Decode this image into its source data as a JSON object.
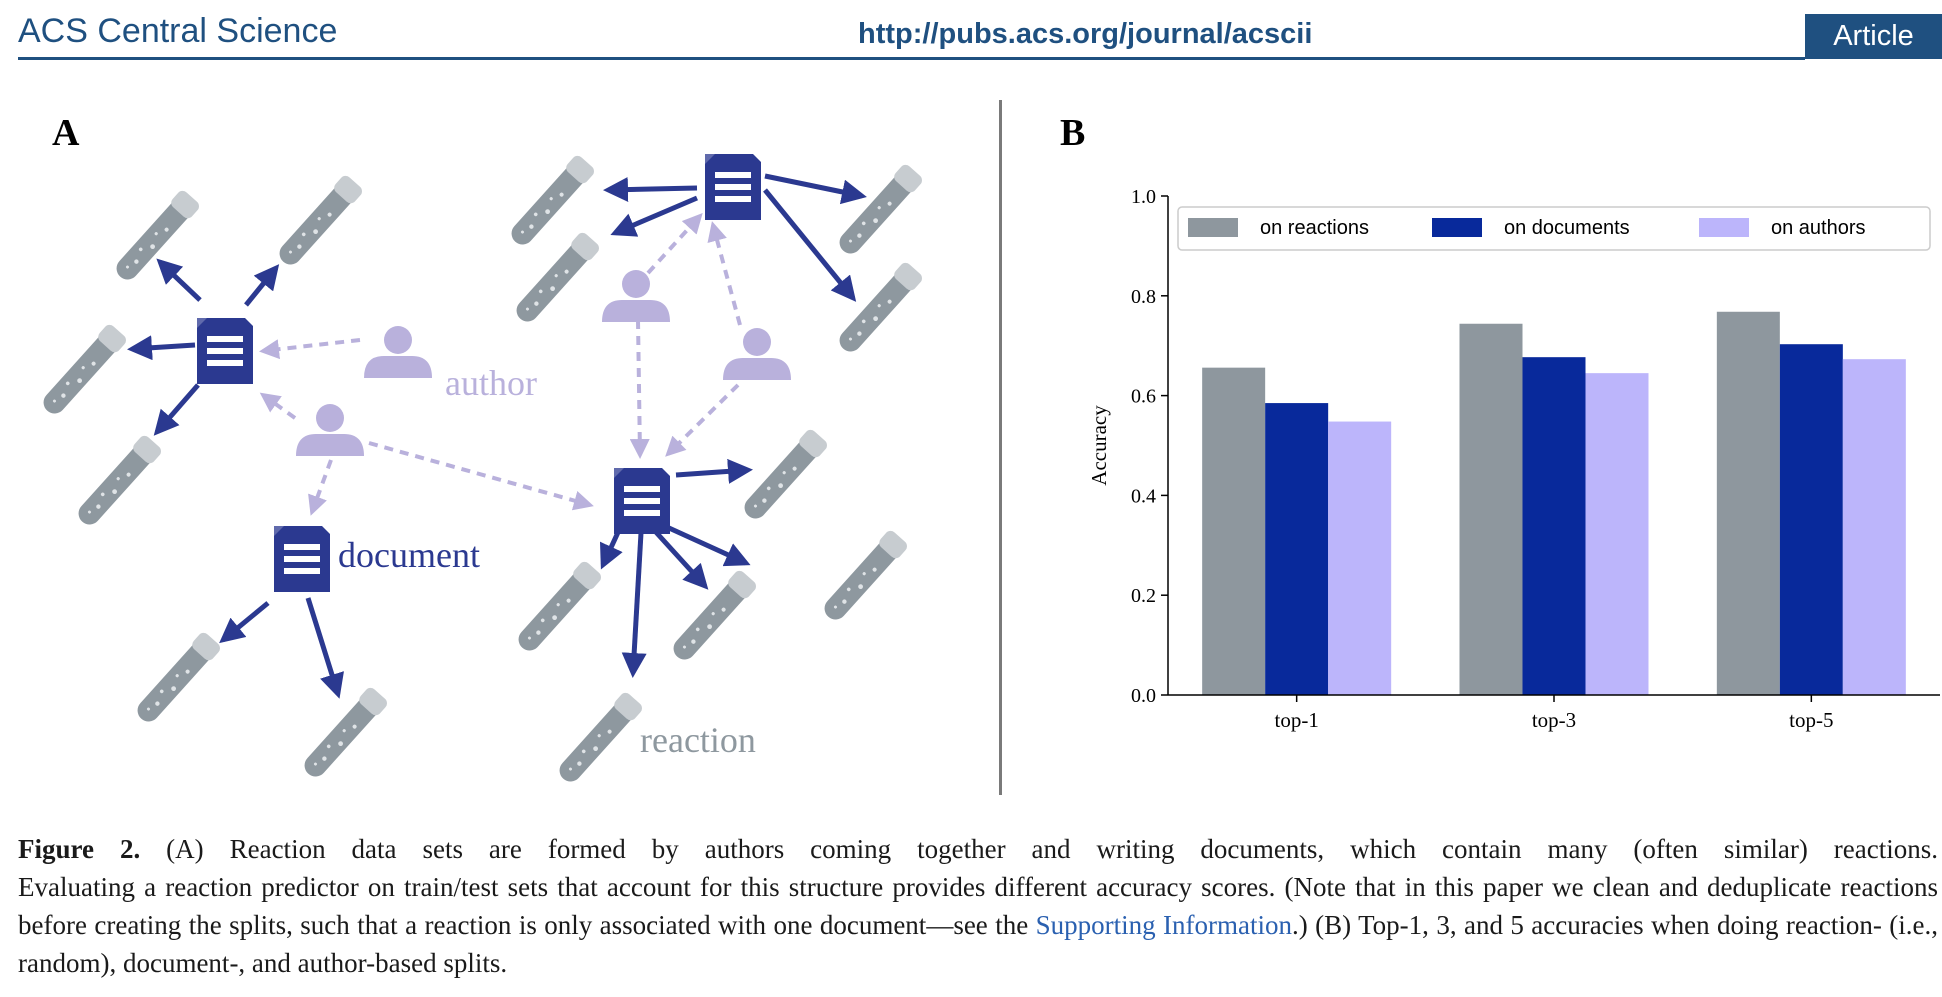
{
  "header": {
    "journal": "ACS Central Science",
    "url": "http://pubs.acs.org/journal/acscii",
    "badge": "Article"
  },
  "panel_a": {
    "label": "A",
    "author_label": "author",
    "document_label": "document",
    "reaction_label": "reaction",
    "colors": {
      "document": "#2b3990",
      "author": "#b9b1dc",
      "tube": "#8e989f"
    }
  },
  "panel_b": {
    "label": "B"
  },
  "chart_data": {
    "type": "bar",
    "categories": [
      "top-1",
      "top-3",
      "top-5"
    ],
    "series": [
      {
        "name": "on reactions",
        "values": [
          0.656,
          0.744,
          0.768
        ],
        "color": "#8e979e"
      },
      {
        "name": "on documents",
        "values": [
          0.585,
          0.677,
          0.703
        ],
        "color": "#08299b"
      },
      {
        "name": "on authors",
        "values": [
          0.548,
          0.645,
          0.673
        ],
        "color": "#bcb5fb"
      }
    ],
    "ylabel": "Accuracy",
    "ylim": [
      0,
      1.0
    ],
    "yticks": [
      "0.0",
      "0.2",
      "0.4",
      "0.6",
      "0.8",
      "1.0"
    ],
    "legend": "top"
  },
  "caption": {
    "label": "Figure 2.",
    "part1": " (A) Reaction data sets are formed by authors coming together and writing documents, which contain many (often similar) reactions.",
    "part2": "Evaluating a reaction predictor on train/test sets that account for this structure provides different accuracy scores. (Note that in this paper we clean and deduplicate reactions before creating the splits, such that a reaction is only associated with one document—see the ",
    "link": "Supporting Information",
    "part3": ".) (B) Top-1, 3, and 5 accuracies when doing reaction- (i.e., random), document-, and author-based splits."
  }
}
